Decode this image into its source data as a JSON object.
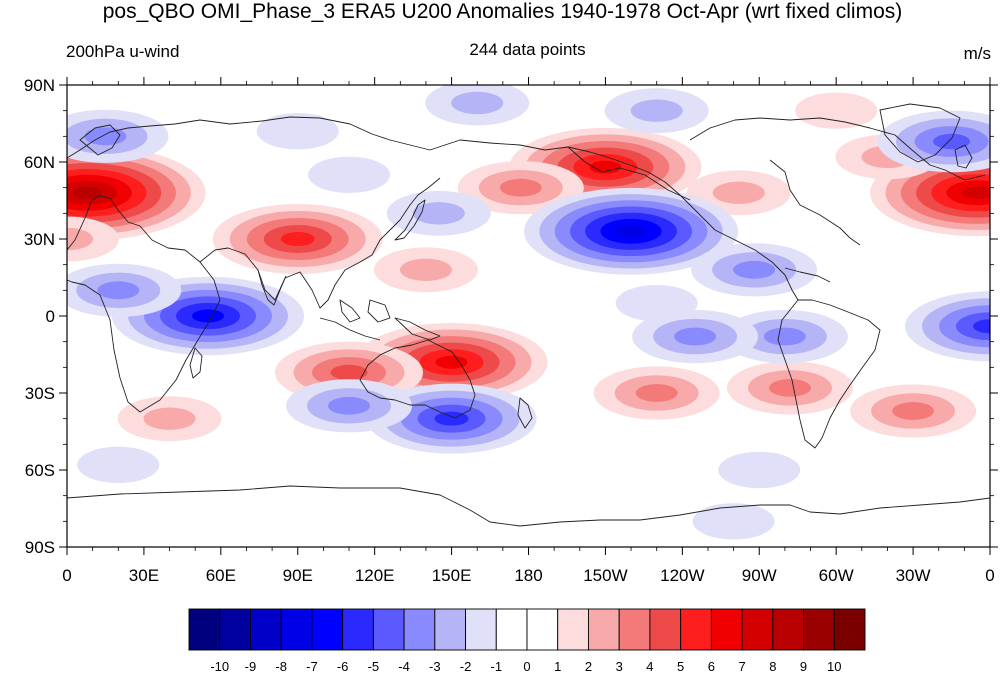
{
  "title": "pos_QBO OMI_Phase_3 ERA5 U200 Anomalies 1940-1978 Oct-Apr (wrt fixed climos)",
  "left_string": "200hPa u-wind",
  "center_string": "244 data points",
  "right_string": "m/s",
  "chart_data": {
    "type": "heatmap",
    "projection": "cylindrical equidistant, 0 to 360 longitude",
    "lon_range": [
      0,
      360
    ],
    "lat_range": [
      -90,
      90
    ],
    "x_tick_labels": [
      "0",
      "30E",
      "60E",
      "90E",
      "120E",
      "150E",
      "180",
      "150W",
      "120W",
      "90W",
      "60W",
      "30W",
      "0"
    ],
    "y_tick_labels": [
      "90N",
      "60N",
      "30N",
      "0",
      "30S",
      "60S",
      "90S"
    ],
    "colorbar": {
      "levels": [
        "-10",
        "-9",
        "-8",
        "-7",
        "-6",
        "-5",
        "-4",
        "-3",
        "-2",
        "-1",
        "0",
        "1",
        "2",
        "3",
        "4",
        "5",
        "6",
        "7",
        "8",
        "9",
        "10"
      ],
      "colors": [
        "#00007f",
        "#0000a0",
        "#0000c8",
        "#0000e6",
        "#0000ff",
        "#2a2aff",
        "#5a5aff",
        "#8a8aff",
        "#b4b4f6",
        "#e0e0f8",
        "#ffffff",
        "#ffffff",
        "#fcdcdc",
        "#f8aaaa",
        "#f47a7a",
        "#ef4a4a",
        "#ff1e1e",
        "#f00000",
        "#d40000",
        "#b80000",
        "#9a0000",
        "#7a0000"
      ]
    },
    "anomalies_ms": [
      {
        "lon": 8,
        "lat": 48,
        "value": 8
      },
      {
        "lon": 355,
        "lat": 48,
        "value": 7
      },
      {
        "lon": 150,
        "lat": -18,
        "value": 6
      },
      {
        "lon": 110,
        "lat": -22,
        "value": 4
      },
      {
        "lon": 210,
        "lat": 58,
        "value": 6
      },
      {
        "lon": 90,
        "lat": 30,
        "value": 5
      },
      {
        "lon": 177,
        "lat": 50,
        "value": 3
      },
      {
        "lon": 140,
        "lat": 18,
        "value": 2
      },
      {
        "lon": 0,
        "lat": 30,
        "value": 2
      },
      {
        "lon": 282,
        "lat": -28,
        "value": 3
      },
      {
        "lon": 330,
        "lat": -37,
        "value": 3
      },
      {
        "lon": 230,
        "lat": -30,
        "value": 3
      },
      {
        "lon": 262,
        "lat": 48,
        "value": 2
      },
      {
        "lon": 320,
        "lat": 62,
        "value": 2
      },
      {
        "lon": 40,
        "lat": -40,
        "value": 2
      },
      {
        "lon": 300,
        "lat": 80,
        "value": 1
      },
      {
        "lon": 220,
        "lat": 33,
        "value": -7
      },
      {
        "lon": 55,
        "lat": 0,
        "value": -6
      },
      {
        "lon": 20,
        "lat": 10,
        "value": -3
      },
      {
        "lon": 360,
        "lat": -4,
        "value": -5
      },
      {
        "lon": 150,
        "lat": -40,
        "value": -5
      },
      {
        "lon": 110,
        "lat": -35,
        "value": -3
      },
      {
        "lon": 280,
        "lat": -8,
        "value": -3
      },
      {
        "lon": 245,
        "lat": -8,
        "value": -3
      },
      {
        "lon": 268,
        "lat": 18,
        "value": -3
      },
      {
        "lon": 345,
        "lat": 68,
        "value": -4
      },
      {
        "lon": 15,
        "lat": 70,
        "value": -3
      },
      {
        "lon": 160,
        "lat": 83,
        "value": -2
      },
      {
        "lon": 230,
        "lat": 80,
        "value": -2
      },
      {
        "lon": 90,
        "lat": 72,
        "value": -1
      },
      {
        "lon": 110,
        "lat": 55,
        "value": -1
      },
      {
        "lon": 20,
        "lat": -58,
        "value": -1
      },
      {
        "lon": 270,
        "lat": -60,
        "value": -1
      },
      {
        "lon": 260,
        "lat": -80,
        "value": -1
      },
      {
        "lon": 230,
        "lat": 5,
        "value": -1
      },
      {
        "lon": 145,
        "lat": 40,
        "value": -2
      }
    ]
  }
}
